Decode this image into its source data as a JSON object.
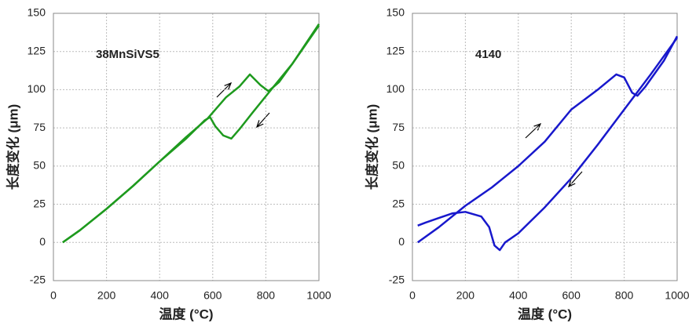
{
  "chart_data": [
    {
      "type": "line",
      "annotation": "38MnSiVS5",
      "xlabel": "温度 (°C)",
      "ylabel": "长度变化 (μm)",
      "xlim": [
        0,
        1000
      ],
      "xticks": [
        0,
        200,
        400,
        600,
        800,
        1000
      ],
      "ylim": [
        -25,
        150
      ],
      "yticks": [
        -25,
        0,
        25,
        50,
        75,
        100,
        125,
        150
      ],
      "grid": true,
      "series": [
        {
          "color": "#1e9a1e",
          "x": [
            35,
            100,
            200,
            300,
            400,
            500,
            580,
            650,
            700,
            740,
            780,
            810,
            850,
            900,
            950,
            1000
          ],
          "values": [
            0,
            8,
            22,
            37,
            53,
            69,
            81,
            95,
            102,
            110,
            103,
            99,
            105,
            117,
            130,
            143
          ]
        },
        {
          "color": "#1e9a1e",
          "x": [
            1000,
            900,
            820,
            750,
            700,
            670,
            640,
            610,
            590,
            570,
            500,
            400,
            300,
            200,
            100,
            35
          ],
          "values": [
            142,
            117,
            100,
            85,
            74,
            68,
            70,
            76,
            82,
            80,
            68,
            53,
            37,
            22,
            8,
            0
          ]
        }
      ]
    },
    {
      "type": "line",
      "annotation": "4140",
      "xlabel": "温度 (°C)",
      "ylabel": "长度变化 (μm)",
      "xlim": [
        0,
        1000
      ],
      "xticks": [
        0,
        200,
        400,
        600,
        800,
        1000
      ],
      "ylim": [
        -25,
        150
      ],
      "yticks": [
        -25,
        0,
        25,
        50,
        75,
        100,
        125,
        150
      ],
      "grid": true,
      "series": [
        {
          "color": "#1818cc",
          "x": [
            20,
            100,
            200,
            300,
            400,
            500,
            600,
            700,
            770,
            800,
            830,
            850,
            880,
            950,
            1000
          ],
          "values": [
            0,
            10,
            24,
            36,
            50,
            66,
            87,
            100,
            110,
            108,
            98,
            96,
            102,
            119,
            135
          ]
        },
        {
          "color": "#1818cc",
          "x": [
            1000,
            900,
            800,
            700,
            600,
            500,
            400,
            350,
            330,
            310,
            290,
            260,
            200,
            150,
            100,
            50,
            20
          ],
          "values": [
            134,
            110,
            87,
            64,
            42,
            23,
            6,
            0,
            -5,
            -2,
            10,
            17,
            20,
            19,
            16,
            13,
            11
          ]
        }
      ]
    }
  ]
}
